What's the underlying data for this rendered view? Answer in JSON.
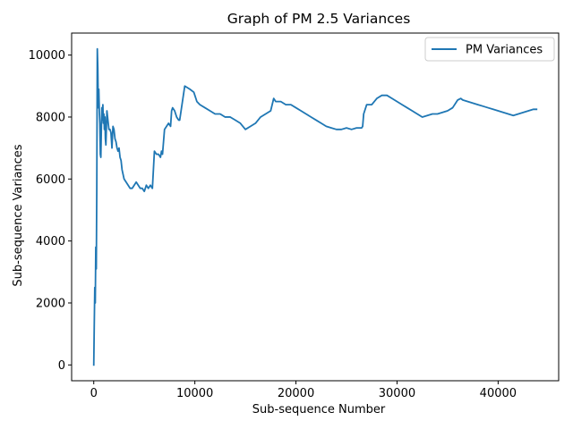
{
  "chart_data": {
    "type": "line",
    "title": "Graph of PM 2.5 Variances",
    "xlabel": "Sub-sequence Number",
    "ylabel": "Sub-sequence Variances",
    "xlim": [
      -2190,
      45990
    ],
    "ylim": [
      -510,
      10710
    ],
    "xticks": [
      0,
      10000,
      20000,
      30000,
      40000
    ],
    "yticks": [
      0,
      2000,
      4000,
      6000,
      8000,
      10000
    ],
    "grid": false,
    "legend_position": "top-right",
    "series": [
      {
        "name": "PM Variances",
        "color": "#1f77b4",
        "x": [
          0,
          50,
          100,
          150,
          200,
          250,
          300,
          350,
          400,
          450,
          500,
          550,
          600,
          650,
          700,
          750,
          800,
          850,
          900,
          950,
          1000,
          1050,
          1100,
          1150,
          1200,
          1300,
          1400,
          1500,
          1600,
          1700,
          1800,
          1900,
          2000,
          2100,
          2200,
          2300,
          2400,
          2500,
          2600,
          2700,
          2800,
          3000,
          3200,
          3400,
          3600,
          3800,
          4000,
          4200,
          4400,
          4600,
          4800,
          5000,
          5200,
          5400,
          5600,
          5800,
          6000,
          6200,
          6400,
          6600,
          6700,
          6800,
          7000,
          7200,
          7400,
          7600,
          7700,
          7800,
          8000,
          8200,
          8400,
          8500,
          9000,
          9500,
          9900,
          10000,
          10100,
          10200,
          10500,
          11000,
          11500,
          12000,
          12500,
          13000,
          13500,
          14000,
          14500,
          15000,
          15500,
          16000,
          16500,
          17000,
          17500,
          17800,
          18000,
          18500,
          19000,
          19500,
          20000,
          20500,
          21000,
          21500,
          22000,
          22500,
          23000,
          23500,
          24000,
          24500,
          25000,
          25500,
          26000,
          26500,
          26600,
          26700,
          27000,
          27500,
          28000,
          28500,
          29000,
          29500,
          30000,
          30500,
          31000,
          31500,
          32000,
          32500,
          33000,
          33500,
          34000,
          34500,
          35000,
          35500,
          36000,
          36300,
          36500,
          37000,
          37500,
          38000,
          38500,
          39000,
          39500,
          40000,
          40500,
          41000,
          41500,
          42000,
          42500,
          43000,
          43500,
          43800
        ],
        "y": [
          0,
          1300,
          2500,
          2000,
          3800,
          3100,
          5700,
          10200,
          9600,
          8300,
          8900,
          8200,
          7800,
          6800,
          6700,
          7600,
          8300,
          7900,
          8400,
          7800,
          8100,
          7600,
          8000,
          7300,
          7100,
          8200,
          7900,
          7600,
          7600,
          7500,
          7000,
          7700,
          7600,
          7300,
          7200,
          7000,
          6900,
          7000,
          6700,
          6600,
          6300,
          6000,
          5900,
          5800,
          5700,
          5700,
          5800,
          5900,
          5800,
          5700,
          5700,
          5600,
          5800,
          5700,
          5800,
          5700,
          6900,
          6800,
          6800,
          6700,
          6900,
          6800,
          7600,
          7700,
          7800,
          7700,
          8200,
          8300,
          8200,
          8000,
          7900,
          7900,
          9000,
          8900,
          8800,
          8700,
          8600,
          8500,
          8400,
          8300,
          8200,
          8100,
          8100,
          8000,
          8000,
          7900,
          7800,
          7600,
          7700,
          7800,
          8000,
          8100,
          8200,
          8600,
          8500,
          8500,
          8400,
          8400,
          8300,
          8200,
          8100,
          8000,
          7900,
          7800,
          7700,
          7650,
          7600,
          7600,
          7650,
          7600,
          7650,
          7650,
          7700,
          8100,
          8400,
          8400,
          8600,
          8700,
          8700,
          8600,
          8500,
          8400,
          8300,
          8200,
          8100,
          8000,
          8050,
          8100,
          8100,
          8150,
          8200,
          8300,
          8550,
          8600,
          8550,
          8500,
          8450,
          8400,
          8350,
          8300,
          8250,
          8200,
          8150,
          8100,
          8050,
          8100,
          8150,
          8200,
          8250,
          8250
        ]
      }
    ]
  }
}
